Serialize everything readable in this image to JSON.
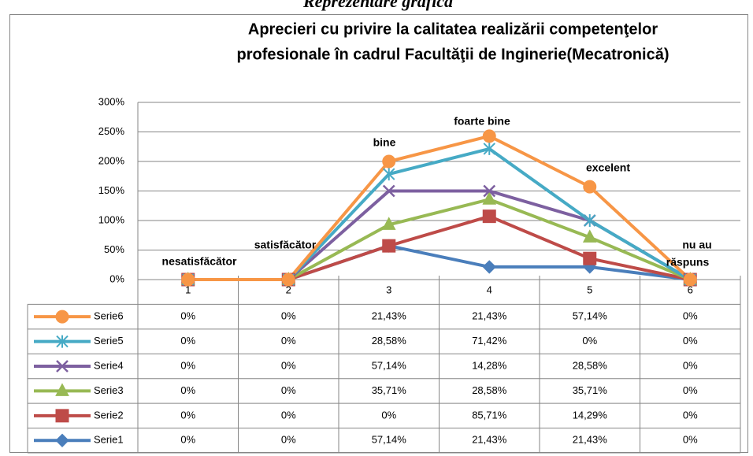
{
  "heading": "Reprezentare grafică",
  "chart_data": {
    "type": "line",
    "stacked": true,
    "title_lines": [
      "Aprecieri cu privire la calitatea realizării competenţelor",
      "profesionale în cadrul Facultăţii de Inginerie(Mecatronică)"
    ],
    "categories": [
      "1",
      "2",
      "3",
      "4",
      "5",
      "6"
    ],
    "ylim": [
      0,
      300
    ],
    "yticks": [
      {
        "value": 0,
        "label": "0%"
      },
      {
        "value": 50,
        "label": "50%"
      },
      {
        "value": 100,
        "label": "100%"
      },
      {
        "value": 150,
        "label": "150%"
      },
      {
        "value": 200,
        "label": "200%"
      },
      {
        "value": 250,
        "label": "250%"
      },
      {
        "value": 300,
        "label": "300%"
      }
    ],
    "grid": true,
    "annotations": [
      "nesatisfăcător",
      "satisfăcător",
      "bine",
      "foarte bine",
      "excelent",
      "nu au",
      "răspuns"
    ],
    "series": [
      {
        "name": "Serie1",
        "color": "#4a7ebb",
        "marker": "diamond",
        "values": [
          0,
          0,
          57.14,
          21.43,
          21.43,
          0
        ],
        "value_labels": [
          "0%",
          "0%",
          "57,14%",
          "21,43%",
          "21,43%",
          "0%"
        ]
      },
      {
        "name": "Serie2",
        "color": "#be4b48",
        "marker": "square",
        "values": [
          0,
          0,
          0,
          85.71,
          14.29,
          0
        ],
        "value_labels": [
          "0%",
          "0%",
          "0%",
          "85,71%",
          "14,29%",
          "0%"
        ]
      },
      {
        "name": "Serie3",
        "color": "#98b954",
        "marker": "triangle",
        "values": [
          0,
          0,
          35.71,
          28.58,
          35.71,
          0
        ],
        "value_labels": [
          "0%",
          "0%",
          "35,71%",
          "28,58%",
          "35,71%",
          "0%"
        ]
      },
      {
        "name": "Serie4",
        "color": "#7d60a0",
        "marker": "x",
        "values": [
          0,
          0,
          57.14,
          14.28,
          28.58,
          0
        ],
        "value_labels": [
          "0%",
          "0%",
          "57,14%",
          "14,28%",
          "28,58%",
          "0%"
        ]
      },
      {
        "name": "Serie5",
        "color": "#46aac5",
        "marker": "star",
        "values": [
          0,
          0,
          28.58,
          71.42,
          0,
          0
        ],
        "value_labels": [
          "0%",
          "0%",
          "28,58%",
          "71,42%",
          "0%",
          "0%"
        ]
      },
      {
        "name": "Serie6",
        "color": "#f79646",
        "marker": "circle",
        "values": [
          0,
          0,
          21.43,
          21.43,
          57.14,
          0
        ],
        "value_labels": [
          "0%",
          "0%",
          "21,43%",
          "21,43%",
          "57,14%",
          "0%"
        ]
      }
    ]
  }
}
